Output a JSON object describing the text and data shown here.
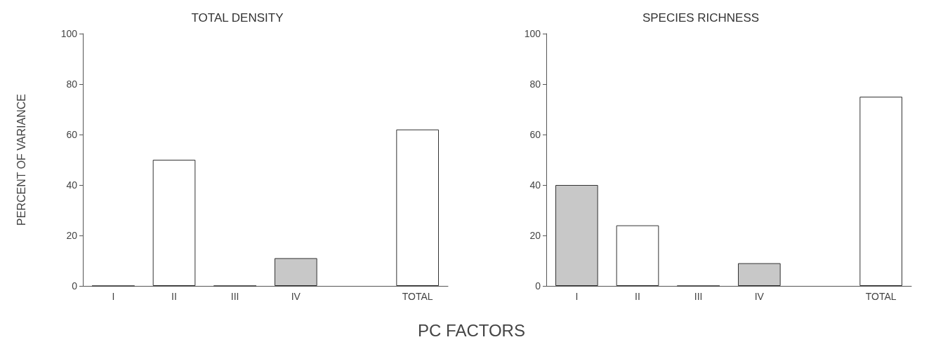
{
  "chart_data": [
    {
      "type": "bar",
      "title": "TOTAL DENSITY",
      "ylabel": "PERCENT OF VARIANCE",
      "xlabel": "PC FACTORS",
      "categories": [
        "I",
        "II",
        "III",
        "IV",
        null,
        "TOTAL"
      ],
      "values": [
        0,
        50,
        0,
        11,
        null,
        62
      ],
      "colors": [
        "#333333",
        "#ffffff",
        "#333333",
        "#c8c8c8",
        "#ffffff",
        "#ffffff"
      ],
      "ylim": [
        0,
        100
      ],
      "yticks": [
        0,
        20,
        40,
        60,
        80,
        100
      ]
    },
    {
      "type": "bar",
      "title": "SPECIES RICHNESS",
      "categories": [
        "I",
        "II",
        "III",
        "IV",
        null,
        "TOTAL"
      ],
      "values": [
        40,
        24,
        0,
        9,
        null,
        75
      ],
      "colors": [
        "#c8c8c8",
        "#ffffff",
        "#333333",
        "#c8c8c8",
        "#ffffff",
        "#ffffff"
      ],
      "ylim": [
        0,
        100
      ],
      "yticks": [
        0,
        20,
        40,
        60,
        80,
        100
      ]
    }
  ]
}
